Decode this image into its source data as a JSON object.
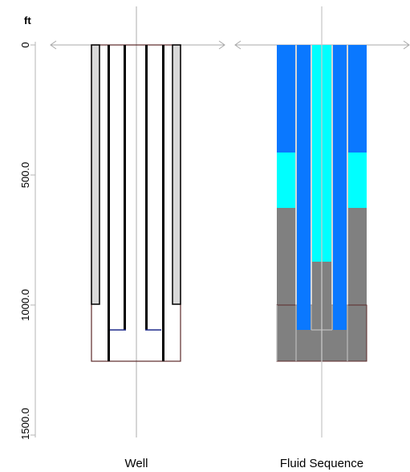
{
  "unit_label": "ft",
  "depth_ticks": [
    "0",
    "500.0",
    "1000.0",
    "1500.0"
  ],
  "panels": [
    {
      "label": "Well"
    },
    {
      "label": "Fluid Sequence"
    }
  ],
  "colors": {
    "casing_fill": "#d9d9d9",
    "casing_line": "#000000",
    "hole_line": "#5c2a2a",
    "tubing_end": "#1f2a8c",
    "fluid_blue": "#0a78ff",
    "fluid_cyan": "#00ffff",
    "fluid_gray": "#808080",
    "centerline": "#c8c8c8",
    "arrow": "#a8a8a8",
    "axis": "#b4b4b4"
  }
}
